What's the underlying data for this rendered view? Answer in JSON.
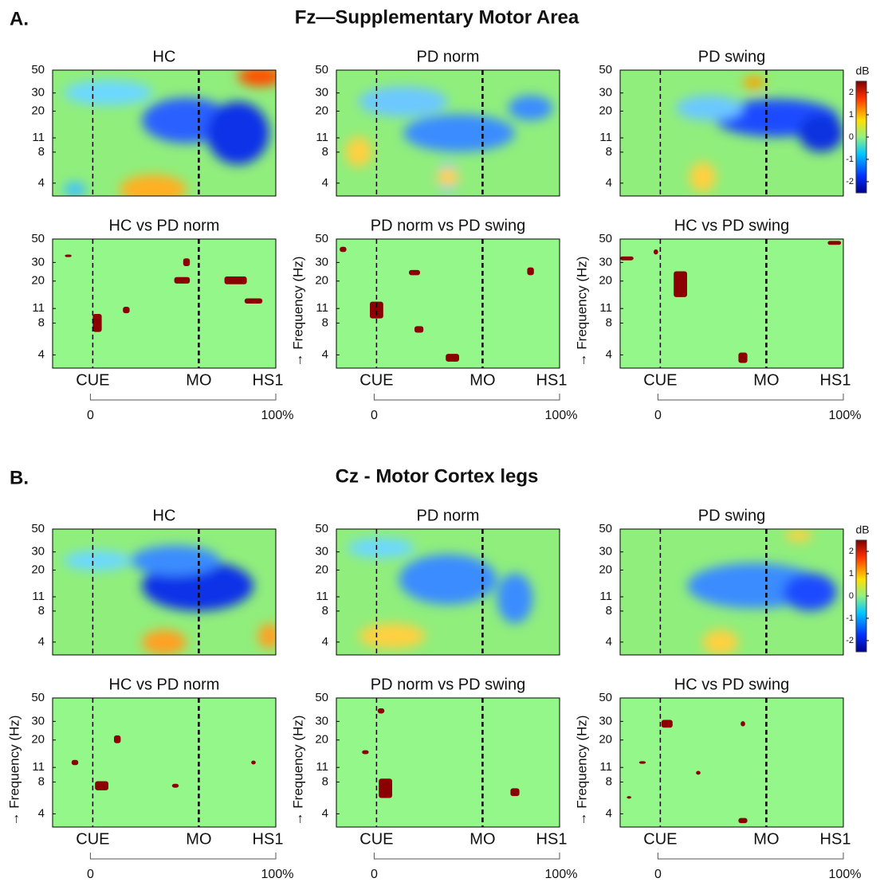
{
  "figure": {
    "sections": [
      {
        "label": "A.",
        "title": "Fz—Supplementary Motor Area",
        "panels": [
          {
            "title": "HC"
          },
          {
            "title": "PD norm"
          },
          {
            "title": "PD swing"
          },
          {
            "title": "HC vs PD norm"
          },
          {
            "title": "PD norm vs PD swing"
          },
          {
            "title": "HC vs PD swing"
          }
        ]
      },
      {
        "label": "B.",
        "title": "Cz - Motor Cortex legs",
        "panels": [
          {
            "title": "HC"
          },
          {
            "title": "PD norm"
          },
          {
            "title": "PD swing"
          },
          {
            "title": "HC vs PD norm"
          },
          {
            "title": "PD norm vs PD swing"
          },
          {
            "title": "HC vs PD swing"
          }
        ]
      }
    ],
    "yticks": [
      50,
      30,
      20,
      11,
      8,
      4
    ],
    "ylim": [
      3,
      50
    ],
    "log_scale": true,
    "ylabel": "→ Frequency (Hz)",
    "events": [
      "CUE",
      "MO",
      "HS1"
    ],
    "timescale": [
      "0",
      "100%"
    ],
    "colorbar": {
      "label": "dB",
      "ticks": [
        2,
        1,
        0,
        -1,
        -2
      ],
      "lim": [
        -2.5,
        2.5
      ]
    }
  }
}
